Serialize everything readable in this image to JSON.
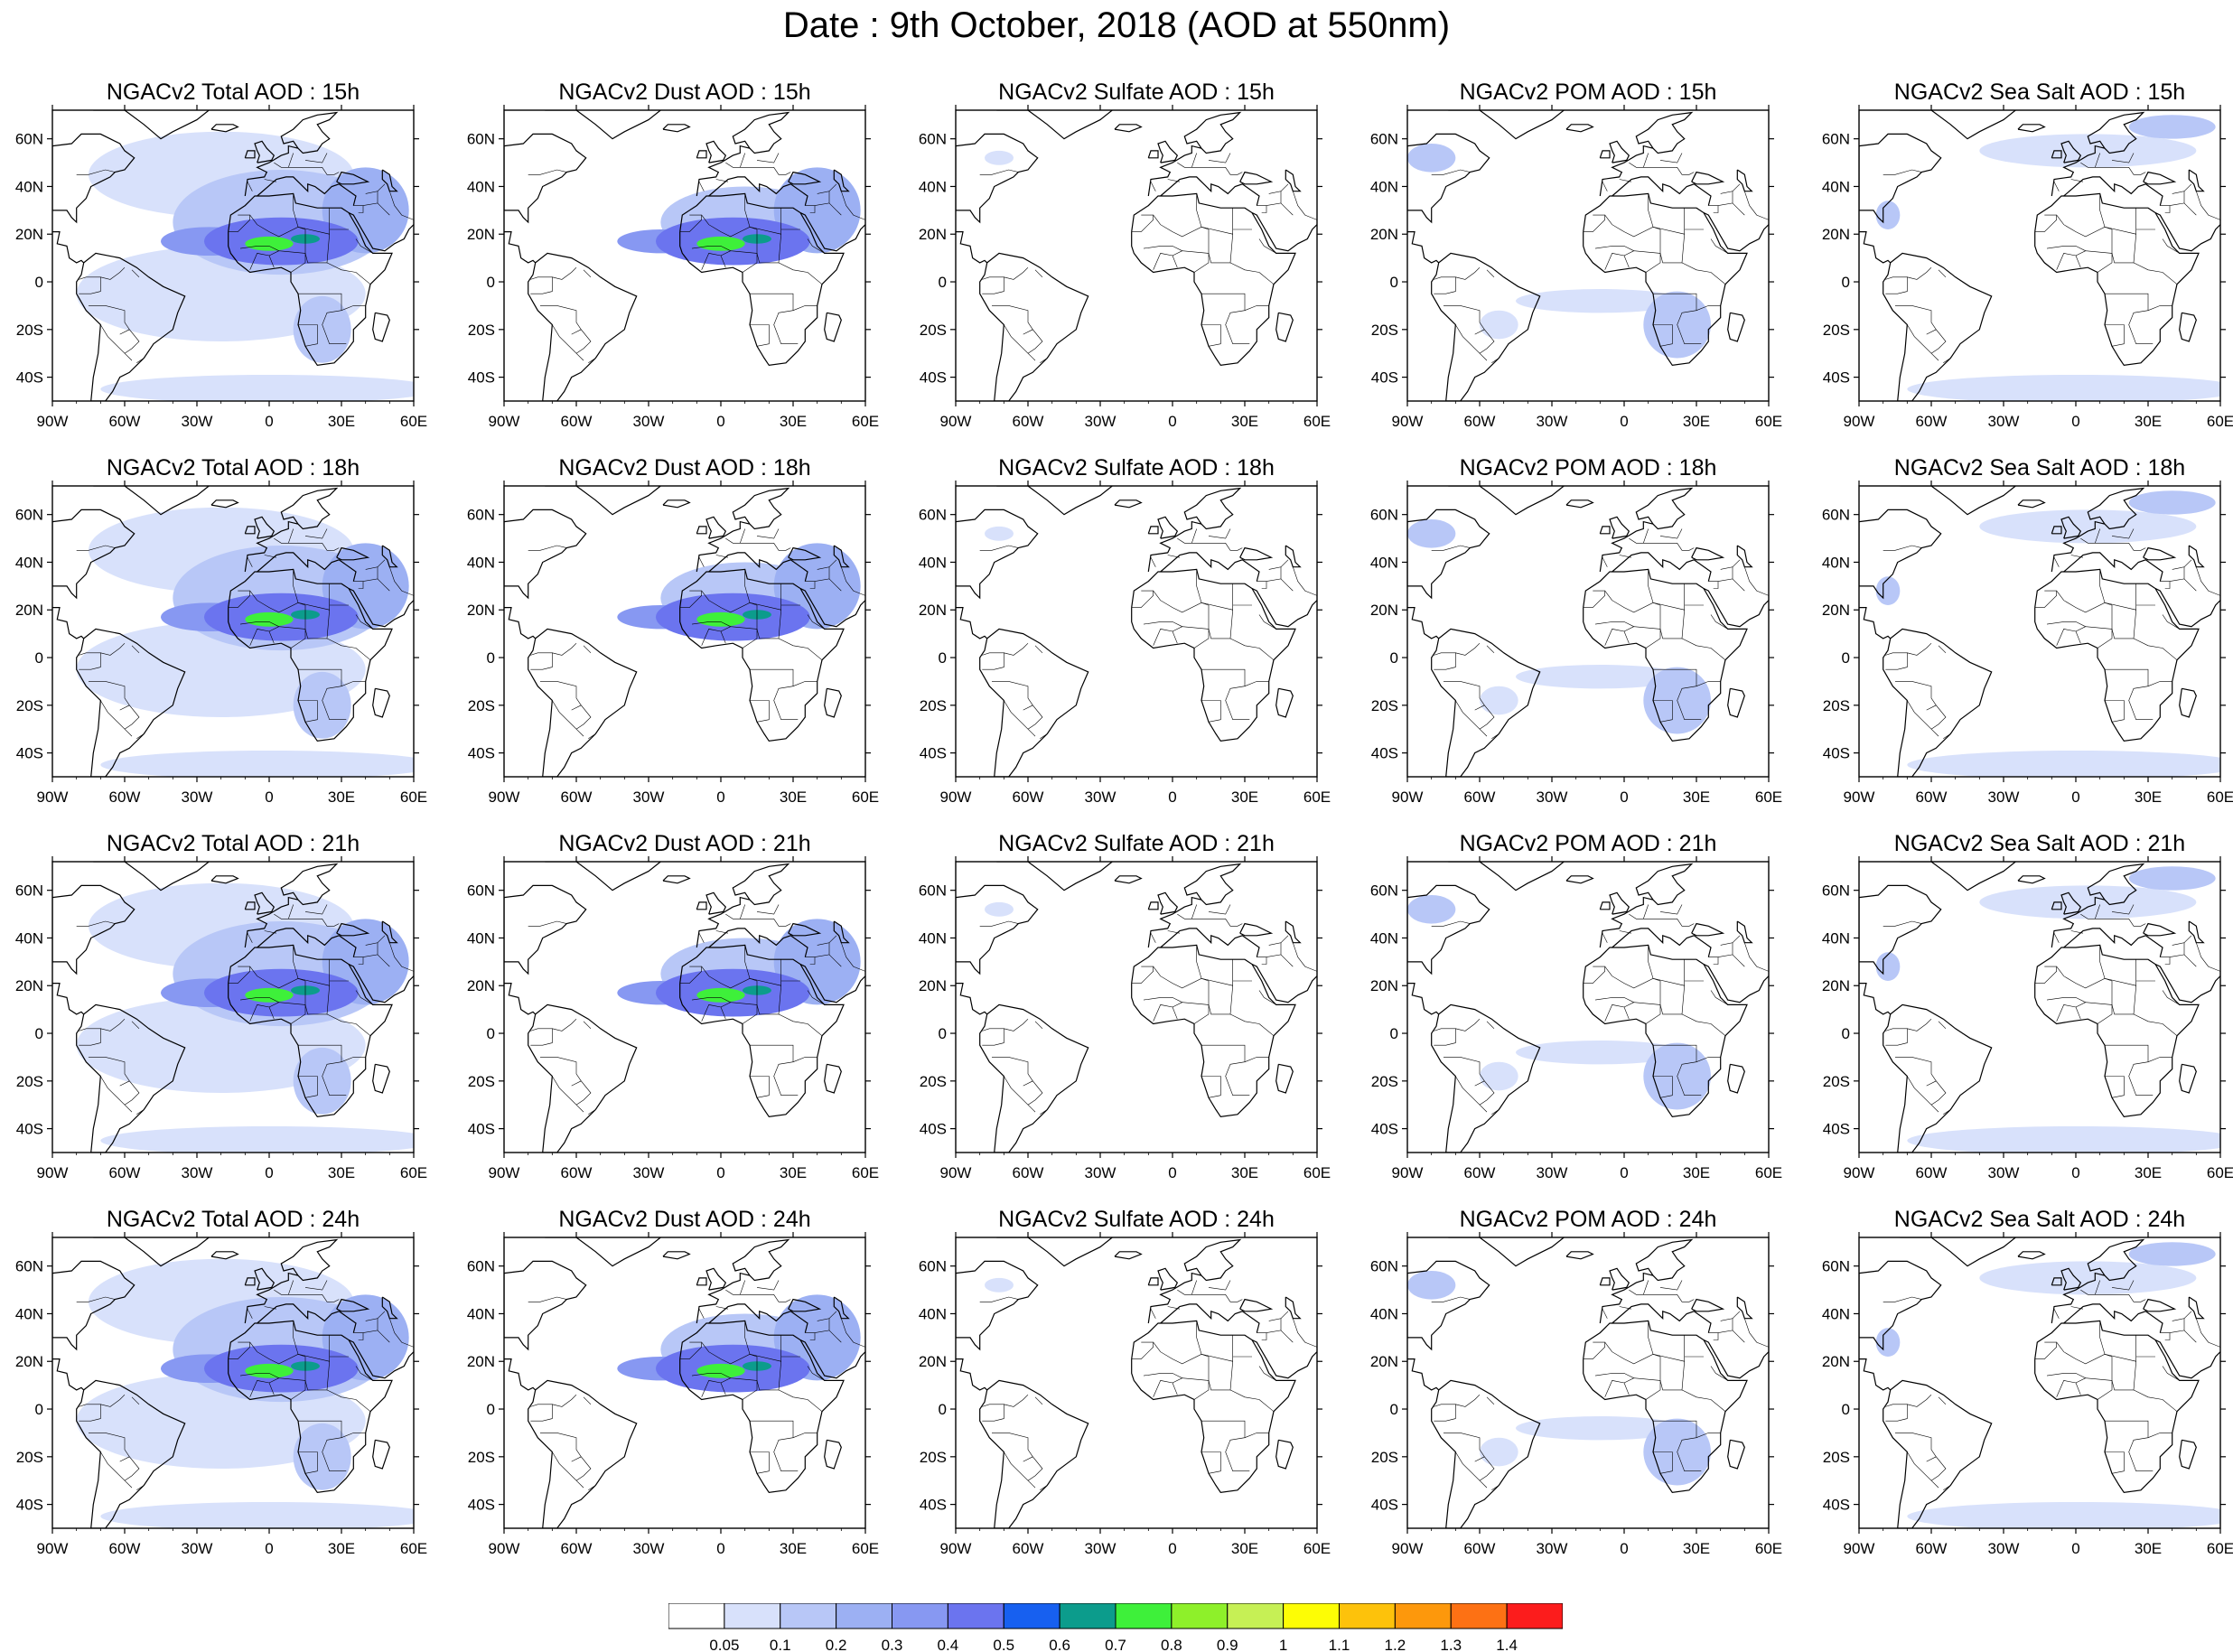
{
  "title": "Date : 9th October, 2018 (AOD at 550nm)",
  "rows": [
    "15h",
    "18h",
    "21h",
    "24h"
  ],
  "panels": [
    [
      "NGACv2 Total AOD : 15h",
      "NGACv2 Dust AOD : 15h",
      "NGACv2 Sulfate AOD : 15h",
      "NGACv2 POM AOD : 15h",
      "NGACv2 Sea Salt AOD : 15h"
    ],
    [
      "NGACv2 Total AOD : 18h",
      "NGACv2 Dust AOD : 18h",
      "NGACv2 Sulfate AOD : 18h",
      "NGACv2 POM AOD : 18h",
      "NGACv2 Sea Salt AOD : 18h"
    ],
    [
      "NGACv2 Total AOD : 21h",
      "NGACv2 Dust AOD : 21h",
      "NGACv2 Sulfate AOD : 21h",
      "NGACv2 POM AOD : 21h",
      "NGACv2 Sea Salt AOD : 21h"
    ],
    [
      "NGACv2 Total AOD : 24h",
      "NGACv2 Dust AOD : 24h",
      "NGACv2 Sulfate AOD : 24h",
      "NGACv2 POM AOD : 24h",
      "NGACv2 Sea Salt  AOD : 24h"
    ]
  ],
  "species": [
    "total",
    "dust",
    "sulfate",
    "pom",
    "seasalt"
  ],
  "map": {
    "lon_range": [
      -90,
      60
    ],
    "lat_range": [
      -50,
      72
    ],
    "lon_ticks": [
      {
        "value": -90,
        "label": "90W"
      },
      {
        "value": -60,
        "label": "60W"
      },
      {
        "value": -30,
        "label": "30W"
      },
      {
        "value": 0,
        "label": "0"
      },
      {
        "value": 30,
        "label": "30E"
      },
      {
        "value": 60,
        "label": "60E"
      }
    ],
    "lat_ticks": [
      {
        "value": 60,
        "label": "60N"
      },
      {
        "value": 40,
        "label": "40N"
      },
      {
        "value": 20,
        "label": "20N"
      },
      {
        "value": 0,
        "label": "0"
      },
      {
        "value": -20,
        "label": "20S"
      },
      {
        "value": -40,
        "label": "40S"
      }
    ]
  },
  "colorbar": {
    "labels": [
      "0.05",
      "0.1",
      "0.2",
      "0.3",
      "0.4",
      "0.5",
      "0.6",
      "0.7",
      "0.8",
      "0.9",
      "1",
      "1.1",
      "1.2",
      "1.3",
      "1.4"
    ],
    "colors": [
      "#ffffff",
      "#d8e1fb",
      "#b8c7f7",
      "#9cb0f3",
      "#8798f2",
      "#6b74ef",
      "#1760f0",
      "#0c9c8c",
      "#3ef03a",
      "#8ef02a",
      "#c6f055",
      "#fdfd05",
      "#fdc20b",
      "#fd980c",
      "#fd7114",
      "#fc1c1c"
    ]
  },
  "plumes": {
    "total": [
      {
        "lon": 5,
        "lat": 17,
        "rlon": 32,
        "rlat": 10,
        "level": 5
      },
      {
        "lon": -25,
        "lat": 17,
        "rlon": 20,
        "rlat": 6,
        "level": 4
      },
      {
        "lon": 5,
        "lat": 25,
        "rlon": 45,
        "rlat": 22,
        "level": 2
      },
      {
        "lon": -20,
        "lat": 45,
        "rlon": 55,
        "rlat": 18,
        "level": 1
      },
      {
        "lon": 22,
        "lat": -20,
        "rlon": 12,
        "rlat": 14,
        "level": 2
      },
      {
        "lon": -20,
        "lat": -5,
        "rlon": 60,
        "rlat": 20,
        "level": 1
      },
      {
        "lon": 0,
        "lat": -45,
        "rlon": 70,
        "rlat": 6,
        "level": 1
      },
      {
        "lon": 40,
        "lat": 30,
        "rlon": 18,
        "rlat": 18,
        "level": 3
      },
      {
        "lon": 0,
        "lat": 16,
        "rlon": 10,
        "rlat": 3,
        "level": 8
      },
      {
        "lon": 15,
        "lat": 18,
        "rlon": 6,
        "rlat": 2,
        "level": 7
      }
    ],
    "dust": [
      {
        "lon": 5,
        "lat": 17,
        "rlon": 32,
        "rlat": 10,
        "level": 5
      },
      {
        "lon": -25,
        "lat": 17,
        "rlon": 18,
        "rlat": 5,
        "level": 4
      },
      {
        "lon": 10,
        "lat": 25,
        "rlon": 35,
        "rlat": 15,
        "level": 2
      },
      {
        "lon": 40,
        "lat": 30,
        "rlon": 18,
        "rlat": 18,
        "level": 3
      },
      {
        "lon": 0,
        "lat": 16,
        "rlon": 10,
        "rlat": 3,
        "level": 8
      },
      {
        "lon": 15,
        "lat": 18,
        "rlon": 6,
        "rlat": 2,
        "level": 7
      }
    ],
    "sulfate": [
      {
        "lon": -72,
        "lat": 52,
        "rlon": 6,
        "rlat": 3,
        "level": 1
      }
    ],
    "pom": [
      {
        "lon": 22,
        "lat": -18,
        "rlon": 14,
        "rlat": 14,
        "level": 2
      },
      {
        "lon": -10,
        "lat": -8,
        "rlon": 35,
        "rlat": 5,
        "level": 1
      },
      {
        "lon": -80,
        "lat": 52,
        "rlon": 10,
        "rlat": 6,
        "level": 2
      },
      {
        "lon": -52,
        "lat": -18,
        "rlon": 8,
        "rlat": 6,
        "level": 1
      }
    ],
    "seasalt": [
      {
        "lon": 5,
        "lat": 55,
        "rlon": 45,
        "rlat": 7,
        "level": 1
      },
      {
        "lon": 40,
        "lat": 65,
        "rlon": 18,
        "rlat": 5,
        "level": 2
      },
      {
        "lon": 0,
        "lat": -45,
        "rlon": 70,
        "rlat": 6,
        "level": 1
      },
      {
        "lon": -78,
        "lat": 28,
        "rlon": 5,
        "rlat": 6,
        "level": 2
      }
    ]
  }
}
